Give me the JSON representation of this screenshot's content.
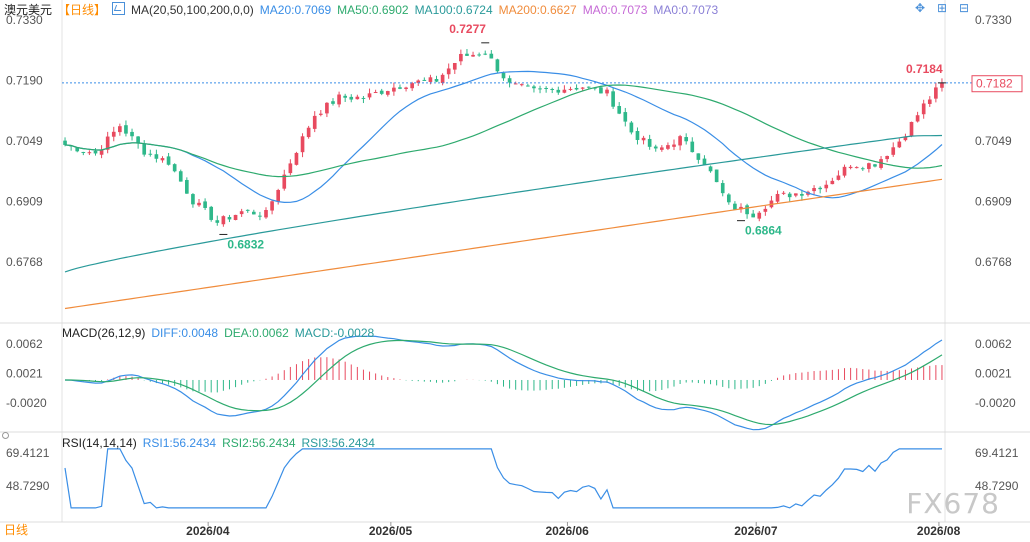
{
  "header": {
    "symbol": "澳元美元",
    "period": "【日线】",
    "ma_label": "MA(20,50,100,200,0,0)",
    "ma_values": [
      {
        "label": "MA20:0.7069",
        "color": "#3a8ee6"
      },
      {
        "label": "MA50:0.6902",
        "color": "#2eaa6e"
      },
      {
        "label": "MA100:0.6724",
        "color": "#2a9a9a"
      },
      {
        "label": "MA200:0.6627",
        "color": "#f08c3c"
      },
      {
        "label": "MA0:0.7073",
        "color": "#c66ad6"
      },
      {
        "label": "MA0:0.7073",
        "color": "#8a7fd6"
      }
    ]
  },
  "macd_header": {
    "label": "MACD(26,12,9)",
    "diff": "DIFF:0.0048",
    "dea": "DEA:0.0062",
    "macd": "MACD:-0.0028"
  },
  "rsi_header": {
    "label": "RSI(14,14,14)",
    "rsi1": "RSI1:56.2434",
    "rsi2": "RSI2:56.2434",
    "rsi3": "RSI3:56.2434"
  },
  "bottom_period": "日线",
  "watermark": "FX678",
  "colors": {
    "up": "#e84a5f",
    "down": "#2eb88a",
    "ma20": "#3a8ee6",
    "ma50": "#2eaa6e",
    "ma100": "#2a9a9a",
    "ma200": "#f08c3c"
  },
  "chart_data": {
    "type": "candlestick",
    "y_ticks": [
      "0.7330",
      "0.7190",
      "0.7049",
      "0.6909",
      "0.6768"
    ],
    "ylim": [
      0.665,
      0.734
    ],
    "current_price": "0.7182",
    "last_close_line": 0.7184,
    "annotations": [
      {
        "label": "0.7277",
        "kind": "high"
      },
      {
        "label": "0.7184",
        "kind": "high"
      },
      {
        "label": "0.6832",
        "kind": "low"
      },
      {
        "label": "0.6864",
        "kind": "low"
      }
    ],
    "x_ticks": [
      "2026/04",
      "2026/05",
      "2026/06",
      "2026/07",
      "2026/08"
    ],
    "macd": {
      "y_ticks": [
        "0.0062",
        "0.0021",
        "-0.0020"
      ]
    },
    "rsi": {
      "y_ticks": [
        "69.4121",
        "48.7290"
      ]
    }
  }
}
